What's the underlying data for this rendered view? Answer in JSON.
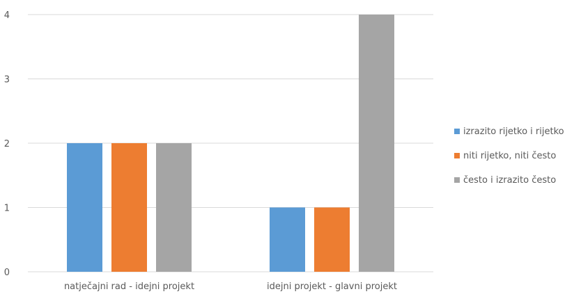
{
  "chart_data": {
    "type": "bar",
    "categories": [
      "natječajni rad - idejni projekt",
      "idejni projekt - glavni projekt"
    ],
    "series": [
      {
        "name": "izrazito rijetko i rijetko",
        "values": [
          2,
          1
        ],
        "color": "#5B9BD5"
      },
      {
        "name": "niti rijetko, niti često",
        "values": [
          2,
          1
        ],
        "color": "#ED7D31"
      },
      {
        "name": "često i izrazito često",
        "values": [
          2,
          4
        ],
        "color": "#A5A5A5"
      }
    ],
    "yticks": [
      "0",
      "1",
      "2",
      "3",
      "4"
    ],
    "ylim": [
      0,
      4
    ],
    "grid": true,
    "legend_position": "right",
    "gridline_color": "#D9D9D9"
  }
}
